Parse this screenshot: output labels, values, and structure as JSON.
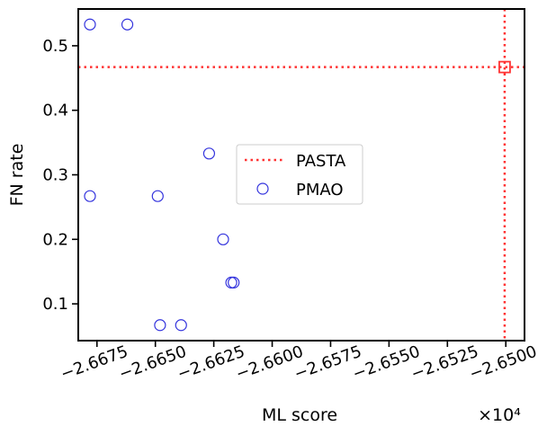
{
  "chart_data": {
    "type": "scatter",
    "xlabel": "ML score",
    "ylabel": "FN rate",
    "x_offset_label": "×10⁴",
    "xlim": [
      -26.683,
      -26.492
    ],
    "ylim": [
      0.043,
      0.557
    ],
    "xticks": [
      {
        "value": -26.675,
        "label": "−2.6675"
      },
      {
        "value": -26.65,
        "label": "−2.6650"
      },
      {
        "value": -26.625,
        "label": "−2.6625"
      },
      {
        "value": -26.6,
        "label": "−2.6600"
      },
      {
        "value": -26.575,
        "label": "−2.6575"
      },
      {
        "value": -26.55,
        "label": "−2.6550"
      },
      {
        "value": -26.525,
        "label": "−2.6525"
      },
      {
        "value": -26.5,
        "label": "−2.6500"
      }
    ],
    "yticks": [
      {
        "value": 0.1,
        "label": "0.1"
      },
      {
        "value": 0.2,
        "label": "0.2"
      },
      {
        "value": 0.3,
        "label": "0.3"
      },
      {
        "value": 0.4,
        "label": "0.4"
      },
      {
        "value": 0.5,
        "label": "0.5"
      }
    ],
    "legend": {
      "location": "center",
      "entries": [
        {
          "label": "PASTA",
          "marker": "dotted-line",
          "color": "#ff3333"
        },
        {
          "label": "PMAO",
          "marker": "open-circle",
          "color": "#3333dd"
        }
      ]
    },
    "series": [
      {
        "name": "PMAO",
        "marker": "open-circle",
        "color": "#3333dd",
        "x": [
          -26.678,
          -26.662,
          -26.678,
          -26.649,
          -26.648,
          -26.639,
          -26.627,
          -26.621,
          -26.6175,
          -26.6165
        ],
        "y": [
          0.533,
          0.533,
          0.267,
          0.267,
          0.067,
          0.067,
          0.333,
          0.2,
          0.133,
          0.133
        ]
      },
      {
        "name": "PASTA",
        "marker": "open-square",
        "color": "#ff3333",
        "x": [
          -26.5005
        ],
        "y": [
          0.467
        ],
        "reference_lines": {
          "x": -26.5005,
          "y": 0.467
        }
      }
    ]
  }
}
